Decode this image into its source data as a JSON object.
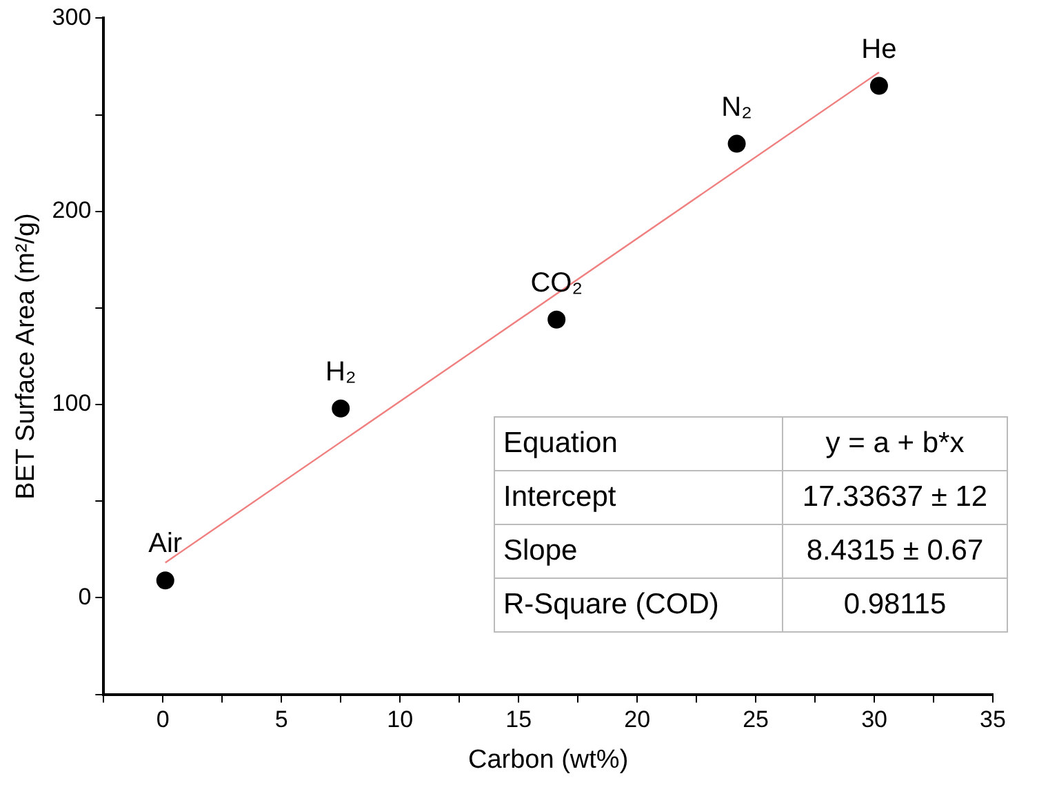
{
  "chart_data": {
    "type": "scatter",
    "xlabel": "Carbon (wt%)",
    "ylabel": "BET Surface Area (m²/g)",
    "xlim": [
      -2.5,
      35
    ],
    "xticks": [
      {
        "value": -2.5,
        "label": null
      },
      0,
      {
        "value": 2.5,
        "label": null
      },
      5,
      {
        "value": 7.5,
        "label": null
      },
      10,
      {
        "value": 12.5,
        "label": null
      },
      15,
      {
        "value": 17.5,
        "label": null
      },
      20,
      {
        "value": 22.5,
        "label": null
      },
      25,
      {
        "value": 27.5,
        "label": null
      },
      30,
      {
        "value": 32.5,
        "label": null
      },
      35
    ],
    "ylim": [
      -50,
      300
    ],
    "yticks": [
      {
        "value": -50,
        "label": null
      },
      0,
      {
        "value": 50,
        "label": null
      },
      100,
      {
        "value": 150,
        "label": null
      },
      200,
      {
        "value": 250,
        "label": null
      },
      300
    ],
    "grid": false,
    "legend": false,
    "marker": "circle",
    "series": [
      {
        "color": "#000000",
        "x": [
          0.1,
          7.5,
          16.6,
          24.2,
          30.2
        ],
        "values": [
          9,
          98,
          144,
          235,
          265
        ]
      },
      {
        "type": "line",
        "color": "#f08080",
        "marker": "none",
        "x": [
          0.1,
          30.2
        ],
        "values": [
          18.2,
          272
        ]
      }
    ],
    "annotations": [
      {
        "text": "Air",
        "x": 0.1,
        "y": 9
      },
      {
        "text": "H₂",
        "x": 7.5,
        "y": 98
      },
      {
        "text": "CO₂",
        "x": 16.6,
        "y": 144
      },
      {
        "text": "N₂",
        "x": 24.2,
        "y": 235
      },
      {
        "text": "He",
        "x": 30.2,
        "y": 265
      },
      "Equation",
      "y = a + b*x",
      "Intercept",
      "17.33637 ± 12",
      "Slope",
      "8.4315 ± 0.67",
      "R-Square (COD)",
      "0.98115"
    ]
  }
}
